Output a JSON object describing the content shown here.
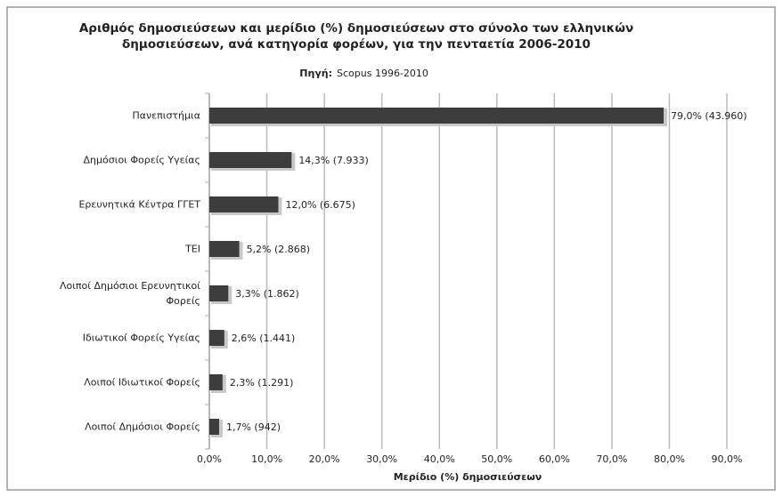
{
  "chart_data": {
    "type": "bar",
    "orientation": "horizontal",
    "title": [
      "Αριθμός δημοσιεύσεων και μερίδιο (%) δημοσιεύσεων στο σύνολο των ελληνικών",
      "δημοσιεύσεων, ανά κατηγορία φορέων, για την πενταετία 2006-2010"
    ],
    "source_label": "Πηγή:",
    "source": "Scopus 1996-2010",
    "x_label": "Μερίδιο (%) δημοσιεύσεων",
    "categories": [
      "Πανεπιστήμια",
      "Δημόσιοι Φορείς Υγείας",
      "Ερευνητικά Κέντρα ΓΓΕΤ",
      "ΤΕΙ",
      "Λοιποί Δημόσιοι Ερευνητικοί Φορείς",
      "Ιδιωτικοί Φορείς Υγείας",
      "Λοιποί Ιδιωτικοί Φορείς",
      "Λοιποί Δημόσιοι Φορείς"
    ],
    "values": [
      79.0,
      14.3,
      12.0,
      5.2,
      3.3,
      2.6,
      2.3,
      1.7
    ],
    "value_labels": [
      "79,0% (43.960)",
      "14,3% (7.933)",
      "12,0% (6.675)",
      "5,2% (2.868)",
      "3,3% (1.862)",
      "2,6% (1.441)",
      "2,3% (1.291)",
      "1,7% (942)"
    ],
    "color": "#3d3d3d",
    "xlim": [
      0,
      90
    ],
    "xticks": [
      {
        "value": 0,
        "label": "0,0%"
      },
      {
        "value": 10,
        "label": "10,0%"
      },
      {
        "value": 20,
        "label": "20,0%"
      },
      {
        "value": 30,
        "label": "30,0%"
      },
      {
        "value": 40,
        "label": "40,0%"
      },
      {
        "value": 50,
        "label": "50,0%"
      },
      {
        "value": 60,
        "label": "60,0%"
      },
      {
        "value": 70,
        "label": "70,0%"
      },
      {
        "value": 80,
        "label": "80,0%"
      },
      {
        "value": 90,
        "label": "90,0%"
      }
    ],
    "grid": true
  }
}
